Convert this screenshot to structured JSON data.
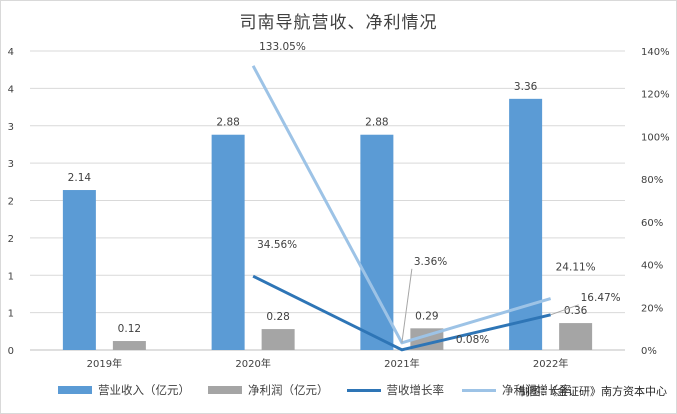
{
  "title": "司南导航营收、净利情况",
  "source": "制图：《金证研》南方资本中心",
  "chart_data": {
    "type": "bar",
    "categories": [
      "2019年",
      "2020年",
      "2021年",
      "2022年"
    ],
    "y_left": {
      "ticks": [
        "0",
        "1",
        "1",
        "2",
        "2",
        "3",
        "3",
        "4",
        "4"
      ],
      "ylim": [
        0,
        4
      ]
    },
    "y_right": {
      "ticks": [
        "0%",
        "20%",
        "40%",
        "60%",
        "80%",
        "100%",
        "120%",
        "140%"
      ],
      "ylim": [
        0,
        140
      ]
    },
    "bar_series": [
      {
        "name": "营业收入（亿元）",
        "values": [
          2.14,
          2.88,
          2.88,
          3.36
        ],
        "labels": [
          "2.14",
          "2.88",
          "2.88",
          "3.36"
        ],
        "color": "#5b9bd5"
      },
      {
        "name": "净利润（亿元）",
        "values": [
          0.12,
          0.28,
          0.29,
          0.36
        ],
        "labels": [
          "0.12",
          "0.28",
          "0.29",
          "0.36"
        ],
        "color": "#a5a5a5"
      }
    ],
    "line_series": [
      {
        "name": "营收增长率",
        "values": [
          null,
          34.56,
          0.08,
          16.47
        ],
        "labels": [
          "",
          "34.56%",
          "0.08%",
          "16.47%"
        ],
        "color": "#2e75b6"
      },
      {
        "name": "净利润增长率",
        "values": [
          null,
          133.05,
          3.36,
          24.11
        ],
        "labels": [
          "",
          "133.05%",
          "3.36%",
          "24.11%"
        ],
        "color": "#9dc3e6"
      }
    ],
    "grid": true,
    "legend_position": "bottom"
  }
}
